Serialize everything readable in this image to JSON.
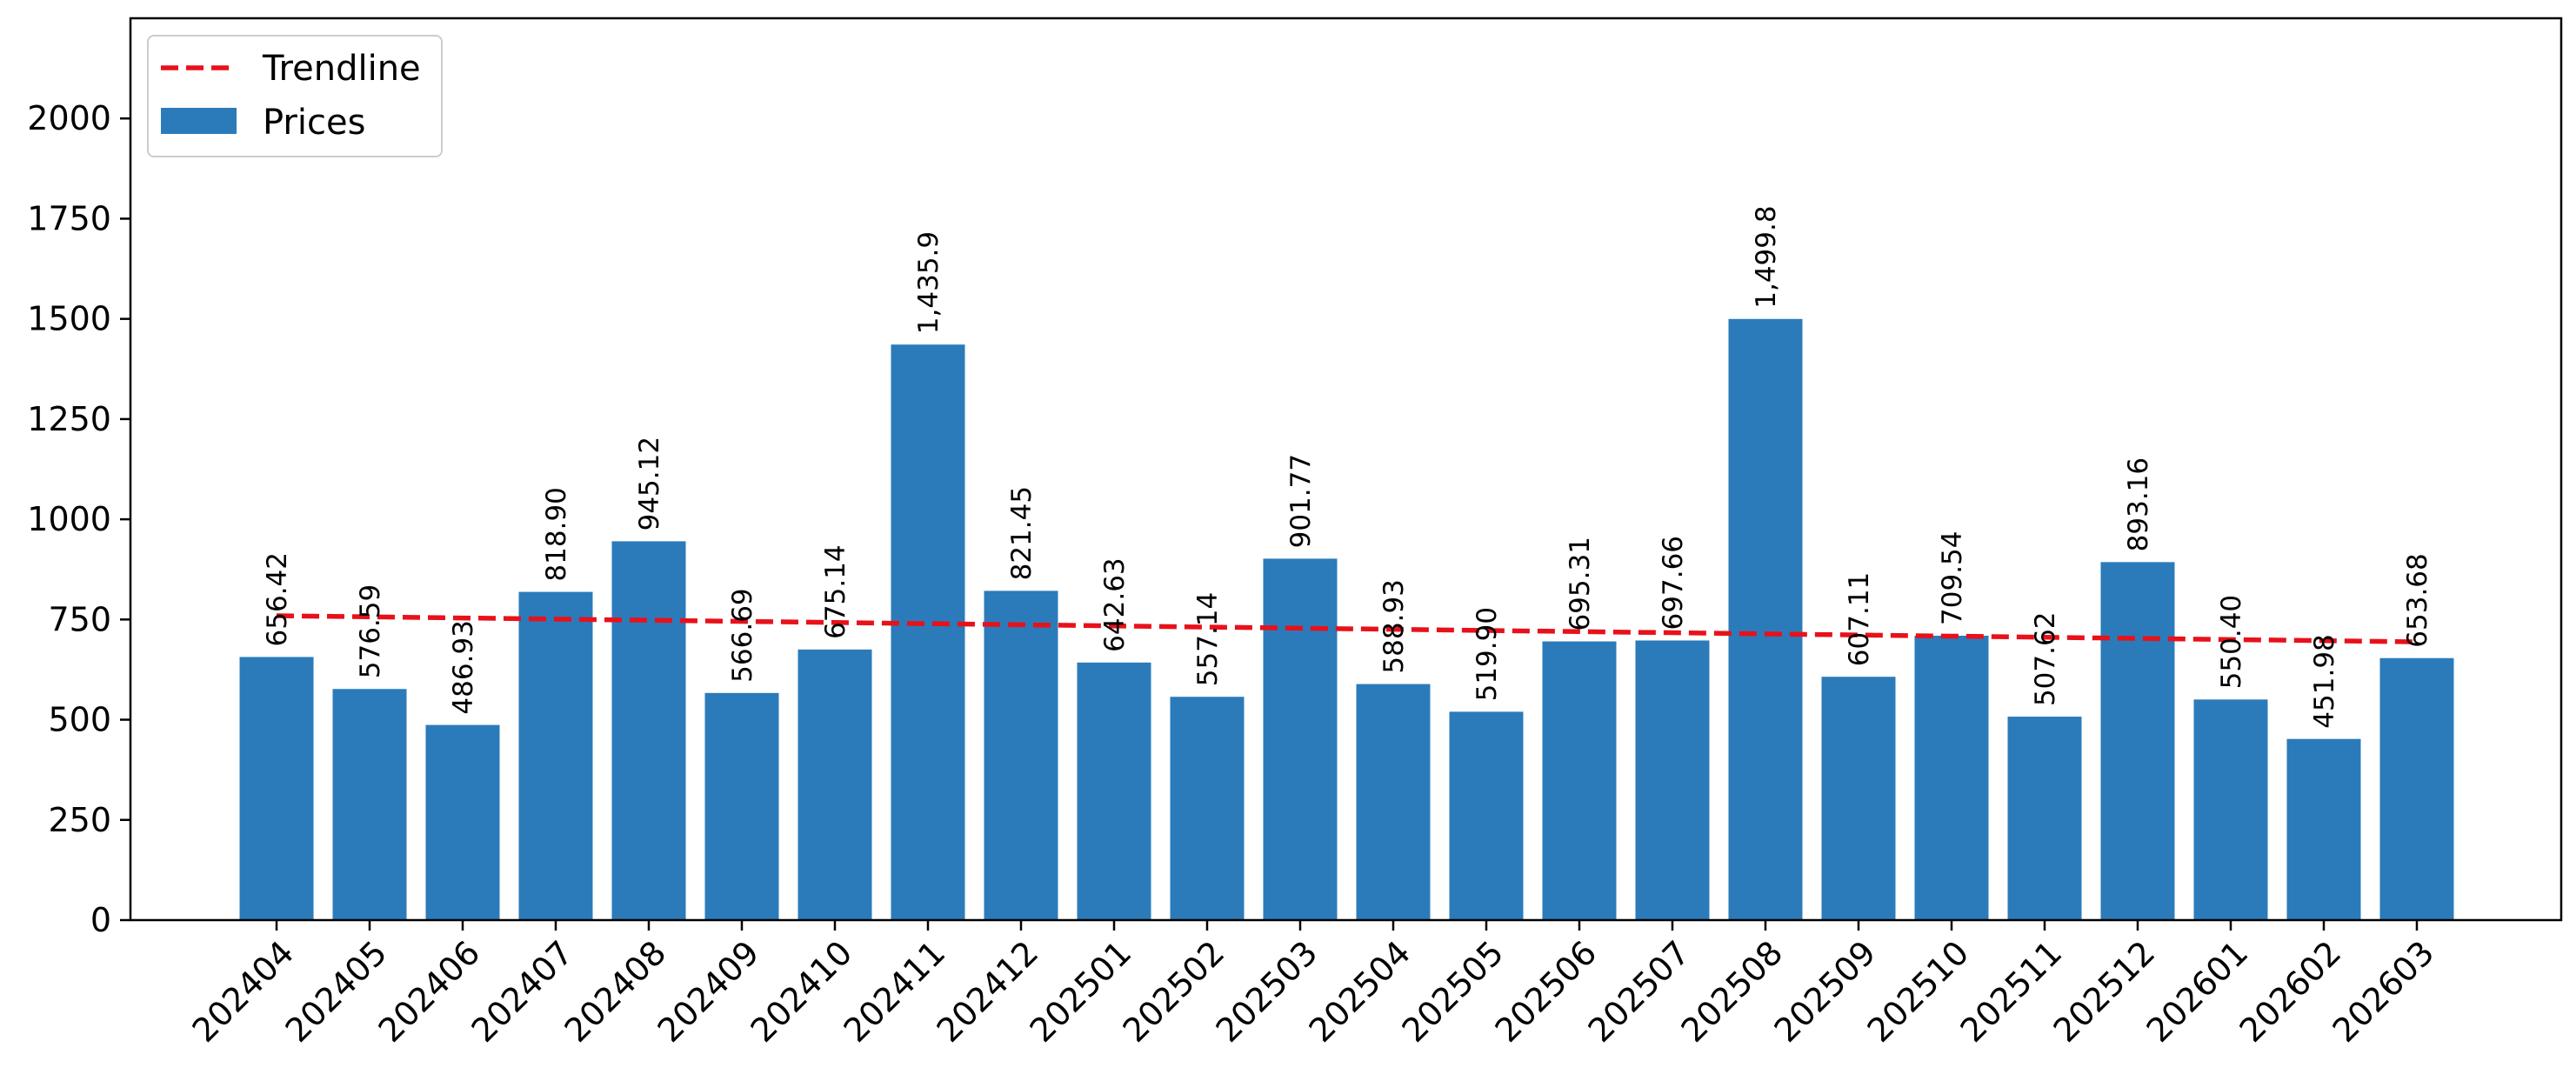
{
  "chart_data": {
    "type": "bar",
    "title": "",
    "xlabel": "",
    "ylabel": "",
    "ylim": [
      0,
      2250
    ],
    "yticks": [
      0,
      250,
      500,
      750,
      1000,
      1250,
      1500,
      1750,
      2000
    ],
    "ytick_labels": [
      "0",
      "250",
      "500",
      "750",
      "1000",
      "1250",
      "1500",
      "1750",
      "2000"
    ],
    "categories": [
      "202404",
      "202405",
      "202406",
      "202407",
      "202408",
      "202409",
      "202410",
      "202411",
      "202412",
      "202501",
      "202502",
      "202503",
      "202504",
      "202505",
      "202506",
      "202507",
      "202508",
      "202509",
      "202510",
      "202511",
      "202512",
      "202601",
      "202602",
      "202603"
    ],
    "series": [
      {
        "name": "Prices",
        "type": "bar",
        "color": "#2b7bba",
        "values": [
          656.42,
          576.59,
          486.93,
          818.9,
          945.12,
          566.69,
          675.14,
          1435.9,
          821.45,
          642.63,
          557.14,
          901.77,
          588.93,
          519.9,
          695.31,
          697.66,
          1499.8,
          607.11,
          709.54,
          507.62,
          893.16,
          550.4,
          451.98,
          653.68
        ],
        "labels": [
          "656.42",
          "576.59",
          "486.93",
          "818.90",
          "945.12",
          "566.69",
          "675.14",
          "1,435.9",
          "821.45",
          "642.63",
          "557.14",
          "901.77",
          "588.93",
          "519.90",
          "695.31",
          "697.66",
          "1,499.8",
          "607.11",
          "709.54",
          "507.62",
          "893.16",
          "550.40",
          "451.98",
          "653.68"
        ]
      },
      {
        "name": "Trendline",
        "type": "line",
        "style": "dashed",
        "color": "#e8111a",
        "values": [
          759.5,
          756.6,
          753.8,
          751.0,
          748.1,
          745.3,
          742.5,
          739.6,
          736.8,
          734.0,
          731.1,
          728.3,
          725.5,
          722.6,
          719.8,
          717.0,
          714.1,
          711.3,
          708.5,
          705.6,
          702.8,
          700.0,
          697.1,
          694.3
        ]
      }
    ],
    "legend": {
      "position": "top-left",
      "entries": [
        "Trendline",
        "Prices"
      ]
    },
    "grid": false
  }
}
